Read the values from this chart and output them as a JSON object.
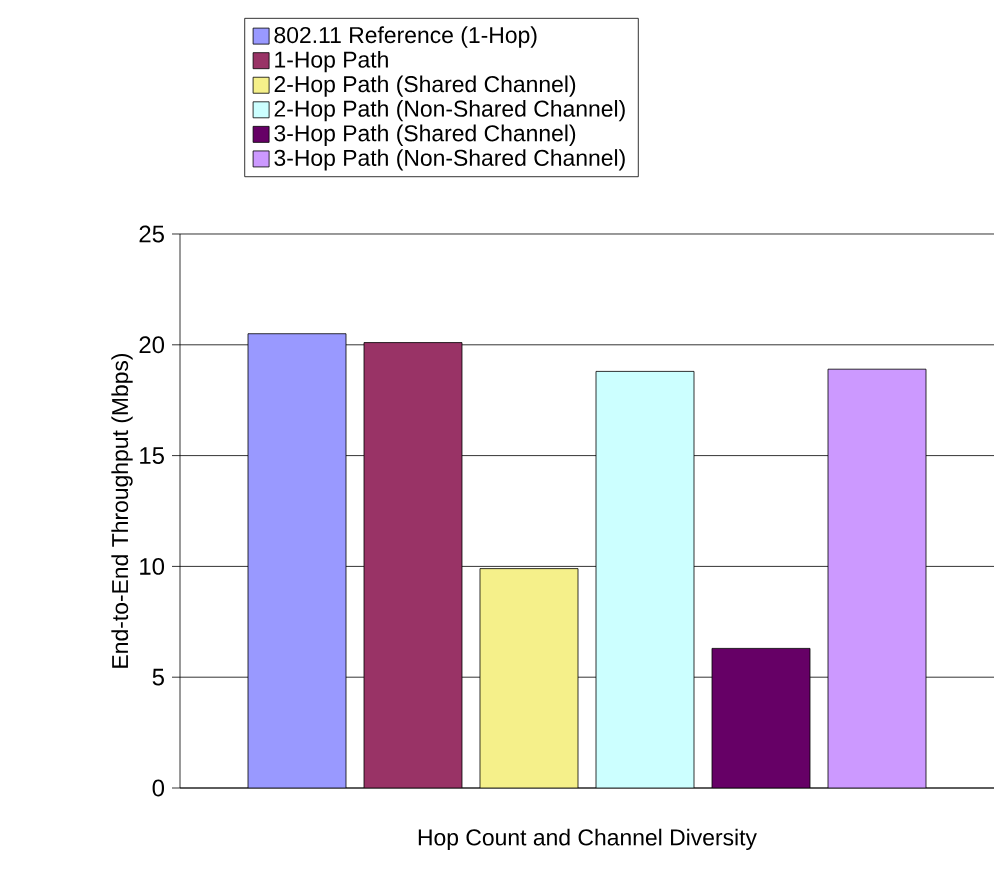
{
  "chart_data": {
    "type": "bar",
    "xlabel": "Hop Count and Channel Diversity",
    "ylabel": "End-to-End Throughput (Mbps)",
    "categories": [
      null
    ],
    "series": [
      {
        "name": "802.11 Reference (1-Hop)",
        "color": "#9999ff",
        "values": [
          20.5
        ]
      },
      {
        "name": "1-Hop Path",
        "color": "#993366",
        "values": [
          20.1
        ]
      },
      {
        "name": "2-Hop Path (Shared Channel)",
        "color": "#f5f08a",
        "values": [
          9.9
        ]
      },
      {
        "name": "2-Hop Path (Non-Shared Channel)",
        "color": "#ccffff",
        "values": [
          18.8
        ]
      },
      {
        "name": "3-Hop Path (Shared Channel)",
        "color": "#660066",
        "values": [
          6.3
        ]
      },
      {
        "name": "3-Hop Path (Non-Shared Channel)",
        "color": "#cc99ff",
        "values": [
          18.9
        ]
      }
    ],
    "ylim": [
      0,
      25
    ],
    "yticks": [
      0,
      5,
      10,
      15,
      20,
      25
    ],
    "grid": "y",
    "legend": "top"
  }
}
